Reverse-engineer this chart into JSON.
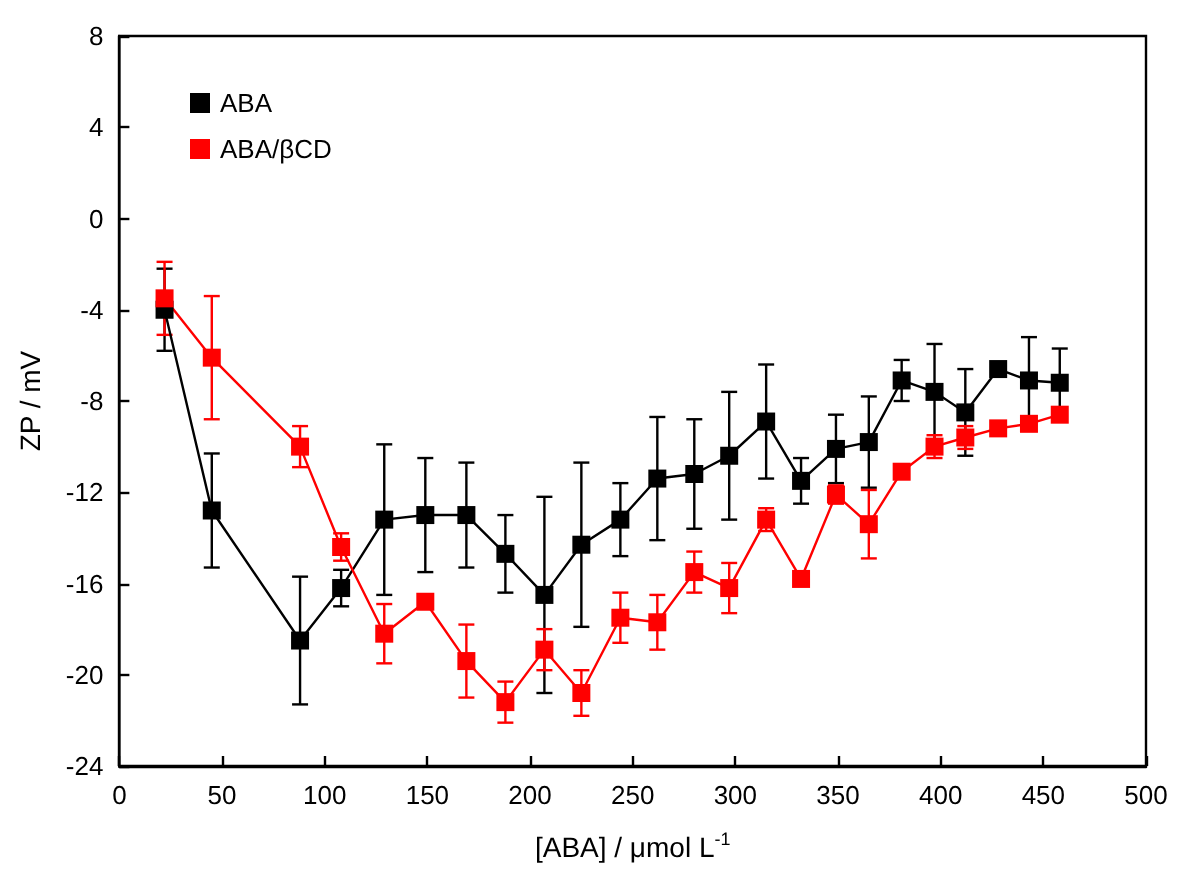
{
  "chart_data": {
    "type": "line",
    "xlabel": "[ABA] / μmol L$^{-1}$",
    "ylabel": "ZP / mV",
    "x": [
      22,
      45,
      88,
      108,
      129,
      149,
      169,
      188,
      207,
      225,
      244,
      262,
      280,
      297,
      315,
      332,
      349,
      365,
      381,
      397,
      412,
      428,
      443,
      458
    ],
    "series": [
      {
        "name": "ABA",
        "color": "#000000",
        "values": [
          -4.0,
          -12.8,
          -18.5,
          -16.2,
          -13.2,
          -13.0,
          -13.0,
          -14.7,
          -16.5,
          -14.3,
          -13.2,
          -11.4,
          -11.2,
          -10.4,
          -8.9,
          -11.5,
          -10.1,
          -9.8,
          -7.1,
          -7.6,
          -8.5,
          -6.6,
          -7.1,
          -7.2
        ],
        "errors": [
          1.8,
          2.5,
          2.8,
          0.8,
          3.3,
          2.5,
          2.3,
          1.7,
          4.3,
          3.6,
          1.6,
          2.7,
          2.4,
          2.8,
          2.5,
          1.0,
          1.5,
          2.0,
          0.9,
          2.1,
          1.9,
          null,
          1.9,
          1.5
        ]
      },
      {
        "name": "ABA/βCD",
        "color": "#ff0000",
        "values": [
          -3.5,
          -6.1,
          -10.0,
          -14.4,
          -18.2,
          -16.8,
          -19.4,
          -21.2,
          -18.9,
          -20.8,
          -17.5,
          -17.7,
          -15.5,
          -16.2,
          -13.2,
          -15.8,
          -12.1,
          -13.4,
          -11.1,
          -10.0,
          -9.6,
          -9.2,
          -9.0,
          -8.6
        ],
        "errors": [
          1.6,
          2.7,
          0.9,
          0.6,
          1.3,
          0.3,
          1.6,
          0.9,
          0.9,
          1.0,
          1.1,
          1.2,
          0.9,
          1.1,
          0.5,
          null,
          0.4,
          1.5,
          null,
          0.5,
          0.5,
          null,
          null,
          null
        ]
      }
    ],
    "xlim": [
      0,
      500
    ],
    "xticks": [
      0,
      50,
      100,
      150,
      200,
      250,
      300,
      350,
      400,
      450,
      500
    ],
    "ylim": [
      -24,
      8
    ],
    "yticks": [
      -24,
      -20,
      -16,
      -12,
      -8,
      -4,
      0,
      4,
      8
    ],
    "legend": "top left",
    "marker": "square",
    "line_style": "solid",
    "grid": false
  }
}
